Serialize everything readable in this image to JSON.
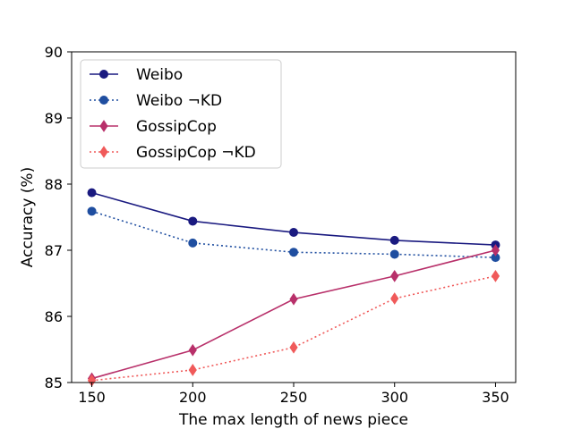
{
  "chart_data": {
    "type": "line",
    "title": "",
    "xlabel": "The max length of news piece",
    "ylabel": "Accuracy (%)",
    "x": [
      150,
      200,
      250,
      300,
      350
    ],
    "xticks": [
      "150",
      "200",
      "250",
      "300",
      "350"
    ],
    "xlim": [
      140,
      360
    ],
    "yticks": [
      "85",
      "86",
      "87",
      "88",
      "89",
      "90"
    ],
    "ylim": [
      85,
      90
    ],
    "grid": false,
    "legend_position": "top-left",
    "series": [
      {
        "name": "Weibo",
        "values": [
          87.87,
          87.44,
          87.27,
          87.15,
          87.08
        ],
        "color": "#1a1a80",
        "linestyle": "solid",
        "marker": "circle"
      },
      {
        "name": "Weibo ¬KD",
        "values": [
          87.59,
          87.11,
          86.97,
          86.94,
          86.89
        ],
        "color": "#1f4ea0",
        "linestyle": "dotted",
        "marker": "circle"
      },
      {
        "name": "GossipCop",
        "values": [
          85.06,
          85.49,
          86.26,
          86.61,
          87.0
        ],
        "color": "#b8306a",
        "linestyle": "solid",
        "marker": "diamond"
      },
      {
        "name": "GossipCop ¬KD",
        "values": [
          85.03,
          85.19,
          85.53,
          86.27,
          86.61
        ],
        "color": "#f05a5a",
        "linestyle": "dotted",
        "marker": "diamond"
      }
    ]
  }
}
